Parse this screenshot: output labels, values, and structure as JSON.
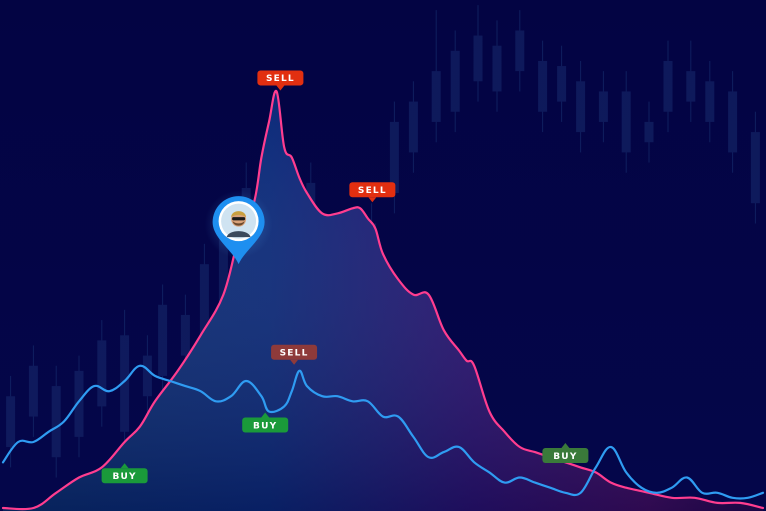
{
  "chart_data": {
    "type": "area",
    "title": "",
    "xlabel": "",
    "ylabel": "",
    "grid": false,
    "legend": "none",
    "xlim": [
      0,
      100
    ],
    "ylim": [
      0,
      100
    ],
    "series": [
      {
        "color": "#ff3d8f",
        "fill": "gradient",
        "x": [
          0,
          4,
          7,
          10,
          13,
          16,
          18,
          20,
          23,
          26,
          29,
          31,
          33,
          34,
          35,
          36,
          37,
          38,
          39,
          40,
          42,
          44,
          46,
          47,
          48,
          49,
          50,
          52,
          54,
          56,
          58,
          60,
          61,
          62,
          64,
          66,
          68,
          70,
          72,
          74,
          76,
          78,
          80,
          82,
          85,
          88,
          91,
          94,
          97,
          100
        ],
        "y": [
          0,
          0,
          3,
          6,
          8,
          13,
          16,
          21,
          27,
          34,
          42,
          53,
          60,
          69,
          76,
          82,
          71,
          69,
          65,
          62,
          58,
          58,
          59,
          59,
          57,
          55,
          50,
          45,
          42,
          42,
          35,
          31,
          29,
          28,
          19,
          15,
          12,
          11,
          10,
          9,
          8,
          7,
          5,
          4,
          3,
          2,
          2,
          1,
          1,
          0
        ]
      },
      {
        "color": "#2f9cf2",
        "x": [
          0,
          2,
          4,
          6,
          8,
          10,
          12,
          14,
          16,
          18,
          20,
          22,
          24,
          26,
          28,
          30,
          32,
          34,
          35,
          37,
          38,
          39,
          40,
          42,
          44,
          46,
          48,
          50,
          52,
          54,
          56,
          58,
          60,
          62,
          64,
          66,
          68,
          70,
          72,
          74,
          76,
          78,
          80,
          82,
          84,
          86,
          88,
          90,
          92,
          94,
          96,
          98,
          100
        ],
        "y": [
          9,
          13,
          13,
          15,
          17,
          21,
          24,
          23,
          25,
          28,
          26,
          25,
          24,
          23,
          21,
          22,
          25,
          22,
          19,
          20,
          23,
          27,
          24,
          22,
          22,
          21,
          21,
          18,
          18,
          14,
          10,
          11,
          12,
          9,
          7,
          5,
          6,
          5,
          4,
          3,
          3,
          8,
          12,
          7,
          4,
          3,
          4,
          6,
          3,
          3,
          2,
          2,
          3
        ]
      }
    ],
    "annotations": [
      {
        "text": "SELL",
        "x": 36.5,
        "y": 82,
        "series": 0,
        "color": "#e22f10"
      },
      {
        "text": "SELL",
        "x": 48.6,
        "y": 60,
        "series": 0,
        "color": "#e22f10"
      },
      {
        "text": "SELL",
        "x": 38.3,
        "y": 28,
        "series": 1,
        "color": "#8e3a3a"
      },
      {
        "text": "BUY",
        "x": 34.5,
        "y": 19,
        "series": 1,
        "color": "#1a9a3a"
      },
      {
        "text": "BUY",
        "x": 16,
        "y": 9,
        "series": 0,
        "color": "#1a9a3a"
      },
      {
        "text": "BUY",
        "x": 74,
        "y": 13,
        "series": 1,
        "color": "#3a7a3a"
      }
    ],
    "marker": {
      "x": 31,
      "y": 48,
      "icon": "avatar-pin-icon",
      "color": "#1e8ff0"
    },
    "candles": [
      {
        "x": 1,
        "open": 12,
        "close": 22,
        "low": 8,
        "high": 26
      },
      {
        "x": 4,
        "open": 18,
        "close": 28,
        "low": 14,
        "high": 32
      },
      {
        "x": 7,
        "open": 10,
        "close": 24,
        "low": 6,
        "high": 28
      },
      {
        "x": 10,
        "open": 14,
        "close": 27,
        "low": 10,
        "high": 30
      },
      {
        "x": 13,
        "open": 20,
        "close": 33,
        "low": 16,
        "high": 37
      },
      {
        "x": 16,
        "open": 15,
        "close": 34,
        "low": 11,
        "high": 39
      },
      {
        "x": 19,
        "open": 22,
        "close": 30,
        "low": 18,
        "high": 34
      },
      {
        "x": 21,
        "open": 26,
        "close": 40,
        "low": 22,
        "high": 44
      },
      {
        "x": 24,
        "open": 30,
        "close": 38,
        "low": 26,
        "high": 42
      },
      {
        "x": 26.5,
        "open": 32,
        "close": 48,
        "low": 28,
        "high": 52
      },
      {
        "x": 29,
        "open": 40,
        "close": 55,
        "low": 36,
        "high": 59
      },
      {
        "x": 32,
        "open": 46,
        "close": 63,
        "low": 42,
        "high": 68
      },
      {
        "x": 35,
        "open": 56,
        "close": 72,
        "low": 52,
        "high": 76
      },
      {
        "x": 38,
        "open": 40,
        "close": 58,
        "low": 36,
        "high": 62
      },
      {
        "x": 40.5,
        "open": 50,
        "close": 64,
        "low": 46,
        "high": 68
      },
      {
        "x": 43,
        "open": 36,
        "close": 46,
        "low": 32,
        "high": 50
      },
      {
        "x": 45.5,
        "open": 28,
        "close": 40,
        "low": 24,
        "high": 44
      },
      {
        "x": 48.5,
        "open": 38,
        "close": 56,
        "low": 34,
        "high": 60
      },
      {
        "x": 51.5,
        "open": 62,
        "close": 76,
        "low": 58,
        "high": 80
      },
      {
        "x": 54,
        "open": 70,
        "close": 80,
        "low": 66,
        "high": 84
      },
      {
        "x": 57,
        "open": 76,
        "close": 86,
        "low": 72,
        "high": 98
      },
      {
        "x": 59.5,
        "open": 78,
        "close": 90,
        "low": 74,
        "high": 94
      },
      {
        "x": 62.5,
        "open": 84,
        "close": 93,
        "low": 80,
        "high": 99
      },
      {
        "x": 65,
        "open": 82,
        "close": 91,
        "low": 78,
        "high": 96
      },
      {
        "x": 68,
        "open": 86,
        "close": 94,
        "low": 82,
        "high": 98
      },
      {
        "x": 71,
        "open": 78,
        "close": 88,
        "low": 74,
        "high": 92
      },
      {
        "x": 73.5,
        "open": 80,
        "close": 87,
        "low": 76,
        "high": 91
      },
      {
        "x": 76,
        "open": 74,
        "close": 84,
        "low": 70,
        "high": 88
      },
      {
        "x": 79,
        "open": 76,
        "close": 82,
        "low": 72,
        "high": 86
      },
      {
        "x": 82,
        "open": 70,
        "close": 82,
        "low": 66,
        "high": 86
      },
      {
        "x": 85,
        "open": 72,
        "close": 76,
        "low": 68,
        "high": 80
      },
      {
        "x": 87.5,
        "open": 78,
        "close": 88,
        "low": 74,
        "high": 92
      },
      {
        "x": 90.5,
        "open": 80,
        "close": 86,
        "low": 76,
        "high": 92
      },
      {
        "x": 93,
        "open": 76,
        "close": 84,
        "low": 72,
        "high": 88
      },
      {
        "x": 96,
        "open": 70,
        "close": 82,
        "low": 66,
        "high": 86
      },
      {
        "x": 99,
        "open": 60,
        "close": 74,
        "low": 56,
        "high": 78
      }
    ]
  }
}
